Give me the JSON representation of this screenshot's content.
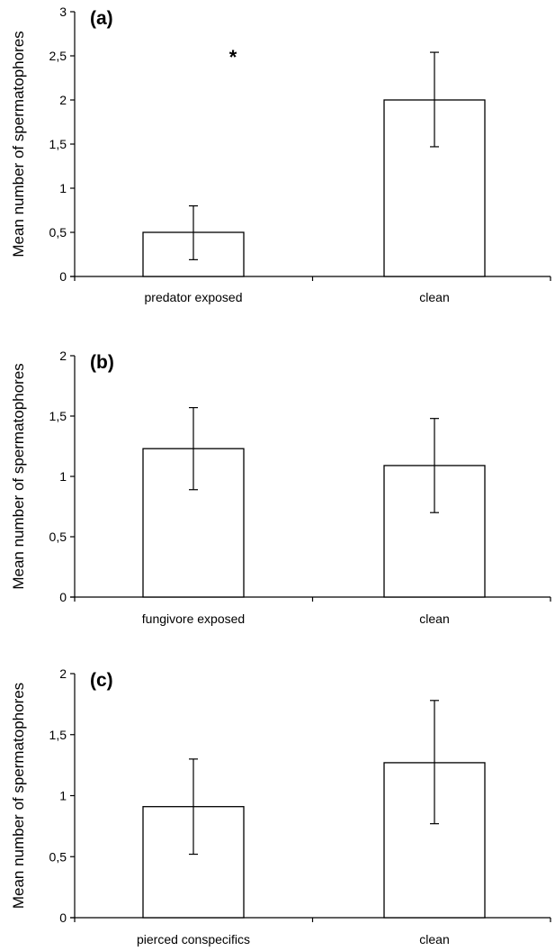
{
  "chart_data": [
    {
      "type": "bar",
      "panel_label": "(a)",
      "categories": [
        "predator exposed",
        "clean"
      ],
      "values": [
        0.5,
        2.0
      ],
      "error_low": [
        0.19,
        1.47
      ],
      "error_high": [
        0.8,
        2.54
      ],
      "ylabel": "Mean number of spermatophores",
      "ylim": [
        0,
        3
      ],
      "yticks": [
        0,
        0.5,
        1,
        1.5,
        2,
        2.5,
        3
      ],
      "ytick_labels": [
        "0",
        "0,5",
        "1",
        "1,5",
        "2",
        "2,5",
        "3"
      ],
      "annotations": [
        {
          "text": "*",
          "category": "predator exposed",
          "y": 2.55
        }
      ],
      "bar_fill": "#ffffff",
      "bar_stroke": "#000000",
      "grid": false
    },
    {
      "type": "bar",
      "panel_label": "(b)",
      "categories": [
        "fungivore exposed",
        "clean"
      ],
      "values": [
        1.23,
        1.09
      ],
      "error_low": [
        0.89,
        0.7
      ],
      "error_high": [
        1.57,
        1.48
      ],
      "ylabel": "Mean number of spermatophores",
      "ylim": [
        0,
        2
      ],
      "yticks": [
        0,
        0.5,
        1,
        1.5,
        2
      ],
      "ytick_labels": [
        "0",
        "0,5",
        "1",
        "1,5",
        "2"
      ],
      "annotations": [],
      "bar_fill": "#ffffff",
      "bar_stroke": "#000000",
      "grid": false
    },
    {
      "type": "bar",
      "panel_label": "(c)",
      "categories": [
        "pierced conspecifics",
        "clean"
      ],
      "values": [
        0.91,
        1.27
      ],
      "error_low": [
        0.52,
        0.77
      ],
      "error_high": [
        1.3,
        1.78
      ],
      "ylabel": "Mean number of spermatophores",
      "ylim": [
        0,
        2
      ],
      "yticks": [
        0,
        0.5,
        1,
        1.5,
        2
      ],
      "ytick_labels": [
        "0",
        "0,5",
        "1",
        "1,5",
        "2"
      ],
      "annotations": [],
      "bar_fill": "#ffffff",
      "bar_stroke": "#000000",
      "grid": false
    }
  ]
}
